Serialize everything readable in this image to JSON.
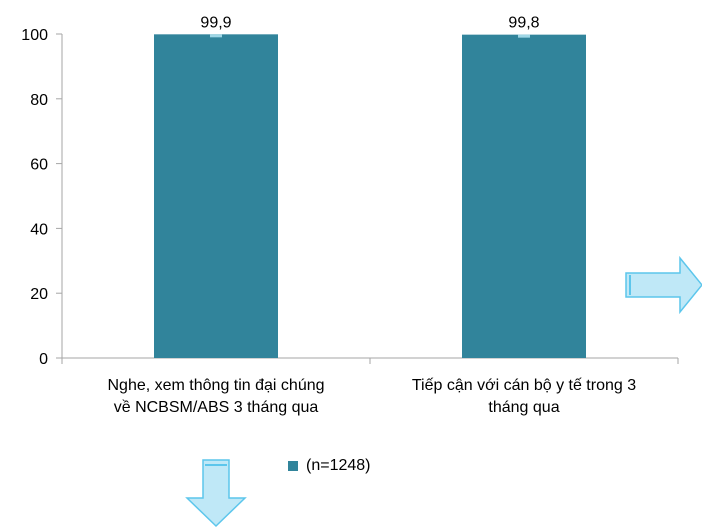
{
  "chart_data": {
    "type": "bar",
    "categories": [
      [
        "Nghe, xem thông tin đại chúng",
        "về NCBSM/ABS 3 tháng qua"
      ],
      [
        "Tiếp cận với cán bộ y tế trong 3",
        "tháng qua"
      ]
    ],
    "series": [
      {
        "name": "(n=1248)",
        "values": [
          99.9,
          99.8
        ]
      }
    ],
    "data_labels": [
      "99,9",
      "99,8"
    ],
    "ylim": [
      0,
      100
    ],
    "yticks": [
      0,
      20,
      40,
      60,
      80,
      100
    ],
    "grid": false,
    "legend": "bottom",
    "colors": {
      "bar": "#31849b",
      "axis": "#a6a6a6",
      "arrow_fill": "#bfe8f7",
      "arrow_stroke": "#5cc6ec"
    }
  },
  "decorations": [
    {
      "icon": "right-arrow-icon"
    },
    {
      "icon": "down-arrow-icon"
    }
  ]
}
